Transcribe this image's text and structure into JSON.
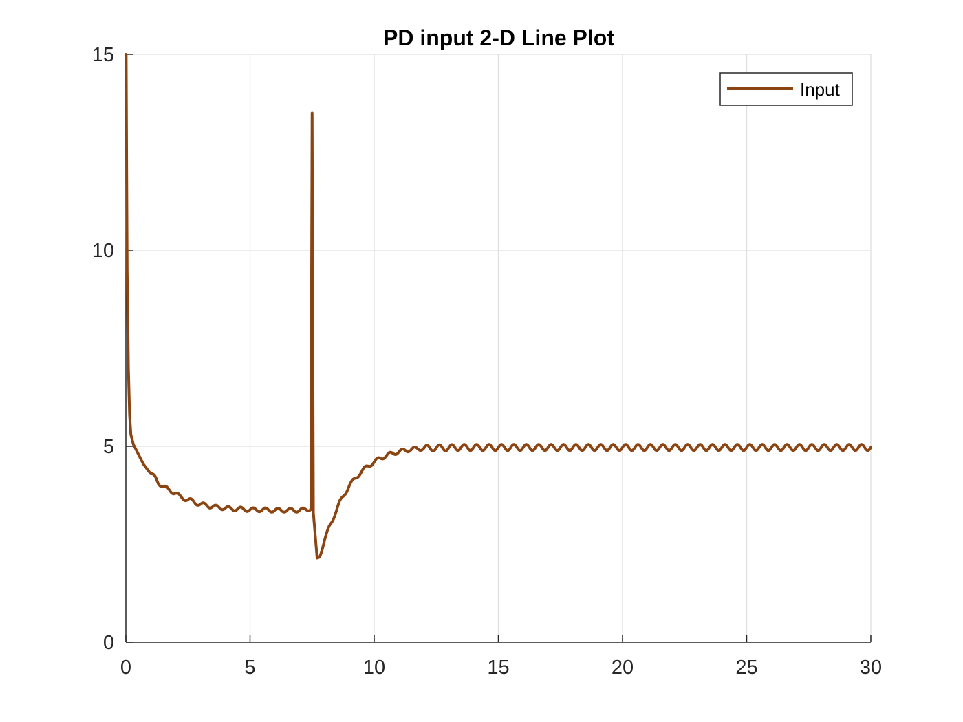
{
  "chart_data": {
    "type": "line",
    "title": "PD input 2-D Line Plot",
    "xlabel": "",
    "ylabel": "",
    "xlim": [
      0,
      30
    ],
    "ylim": [
      0,
      15
    ],
    "xticks": [
      0,
      5,
      10,
      15,
      20,
      25,
      30
    ],
    "yticks": [
      0,
      5,
      10,
      15
    ],
    "grid": true,
    "legend_position": "top-right",
    "series": [
      {
        "name": "Input",
        "color": "#8b4513",
        "x": [
          0,
          0.01,
          0.05,
          0.1,
          0.15,
          0.2,
          0.3,
          0.5,
          0.7,
          0.9,
          1.0,
          1.2,
          1.3,
          1.5,
          1.7,
          1.8,
          2.0,
          2.2,
          2.4,
          2.6,
          2.8,
          3.0,
          3.2,
          3.4,
          3.6,
          3.8,
          4.0,
          4.2,
          4.4,
          4.6,
          4.8,
          5.0,
          5.2,
          5.4,
          5.6,
          5.8,
          6.0,
          6.2,
          6.4,
          6.6,
          6.8,
          7.0,
          7.2,
          7.35,
          7.45,
          7.5,
          7.55,
          7.7,
          7.8,
          8.0,
          8.2,
          8.4,
          8.6,
          8.8,
          9.0,
          9.2,
          9.4,
          9.6,
          9.8,
          10.0,
          10.2,
          10.4,
          10.6,
          10.8,
          11.0,
          11.2,
          11.4,
          11.6,
          11.8,
          12.0,
          12.25,
          12.5,
          12.75,
          13.0,
          13.25,
          13.5,
          13.75,
          14.0,
          14.25,
          14.5,
          14.75,
          15.0,
          15.25,
          15.5,
          15.75,
          16.0,
          16.25,
          16.5,
          16.75,
          17.0,
          17.25,
          17.5,
          17.75,
          18.0,
          18.25,
          18.5,
          18.75,
          19.0,
          19.25,
          19.5,
          19.75,
          20.0,
          20.25,
          20.5,
          20.75,
          21.0,
          21.25,
          21.5,
          21.75,
          22.0,
          22.25,
          22.5,
          22.75,
          23.0,
          23.25,
          23.5,
          23.75,
          24.0,
          24.25,
          24.5,
          24.75,
          25.0,
          25.25,
          25.5,
          25.75,
          26.0,
          26.25,
          26.5,
          26.75,
          27.0,
          27.25,
          27.5,
          27.75,
          28.0,
          28.25,
          28.5,
          28.75,
          29.0,
          29.25,
          29.5,
          29.75,
          30.0
        ],
        "y": [
          15.0,
          15.0,
          9.5,
          7.0,
          5.8,
          5.3,
          5.05,
          4.8,
          4.55,
          4.38,
          4.3,
          4.18,
          4.08,
          3.97,
          3.9,
          3.87,
          3.8,
          3.7,
          3.66,
          3.62,
          3.56,
          3.52,
          3.5,
          3.47,
          3.45,
          3.44,
          3.42,
          3.41,
          3.4,
          3.4,
          3.39,
          3.38,
          3.38,
          3.38,
          3.38,
          3.37,
          3.37,
          3.37,
          3.37,
          3.37,
          3.37,
          3.37,
          3.38,
          3.4,
          3.42,
          13.5,
          3.3,
          2.15,
          2.2,
          2.6,
          2.95,
          3.25,
          3.55,
          3.78,
          4.0,
          4.15,
          4.3,
          4.42,
          4.52,
          4.6,
          4.68,
          4.74,
          4.79,
          4.83,
          4.86,
          4.89,
          4.91,
          4.93,
          4.94,
          4.95,
          4.95,
          4.96,
          4.96,
          4.96,
          4.97,
          4.97,
          4.97,
          4.97,
          4.97,
          4.97,
          4.97,
          4.97,
          4.97,
          4.97,
          4.97,
          4.97,
          4.97,
          4.97,
          4.97,
          4.97,
          4.97,
          4.97,
          4.97,
          4.97,
          4.97,
          4.97,
          4.97,
          4.97,
          4.97,
          4.97,
          4.97,
          4.97,
          4.97,
          4.97,
          4.97,
          4.97,
          4.97,
          4.97,
          4.97,
          4.97,
          4.97,
          4.97,
          4.97,
          4.97,
          4.97,
          4.97,
          4.97,
          4.97,
          4.97,
          4.97,
          4.97,
          4.97,
          4.97,
          4.97,
          4.97,
          4.97,
          4.97,
          4.97,
          4.97,
          4.97,
          4.97,
          4.97,
          4.97,
          4.97,
          4.97,
          4.97,
          4.97,
          4.97,
          4.97,
          4.97,
          4.97,
          4.97
        ],
        "ripple": {
          "from_x": 1.0,
          "period": 0.5,
          "amplitude": 0.05
        }
      }
    ]
  }
}
